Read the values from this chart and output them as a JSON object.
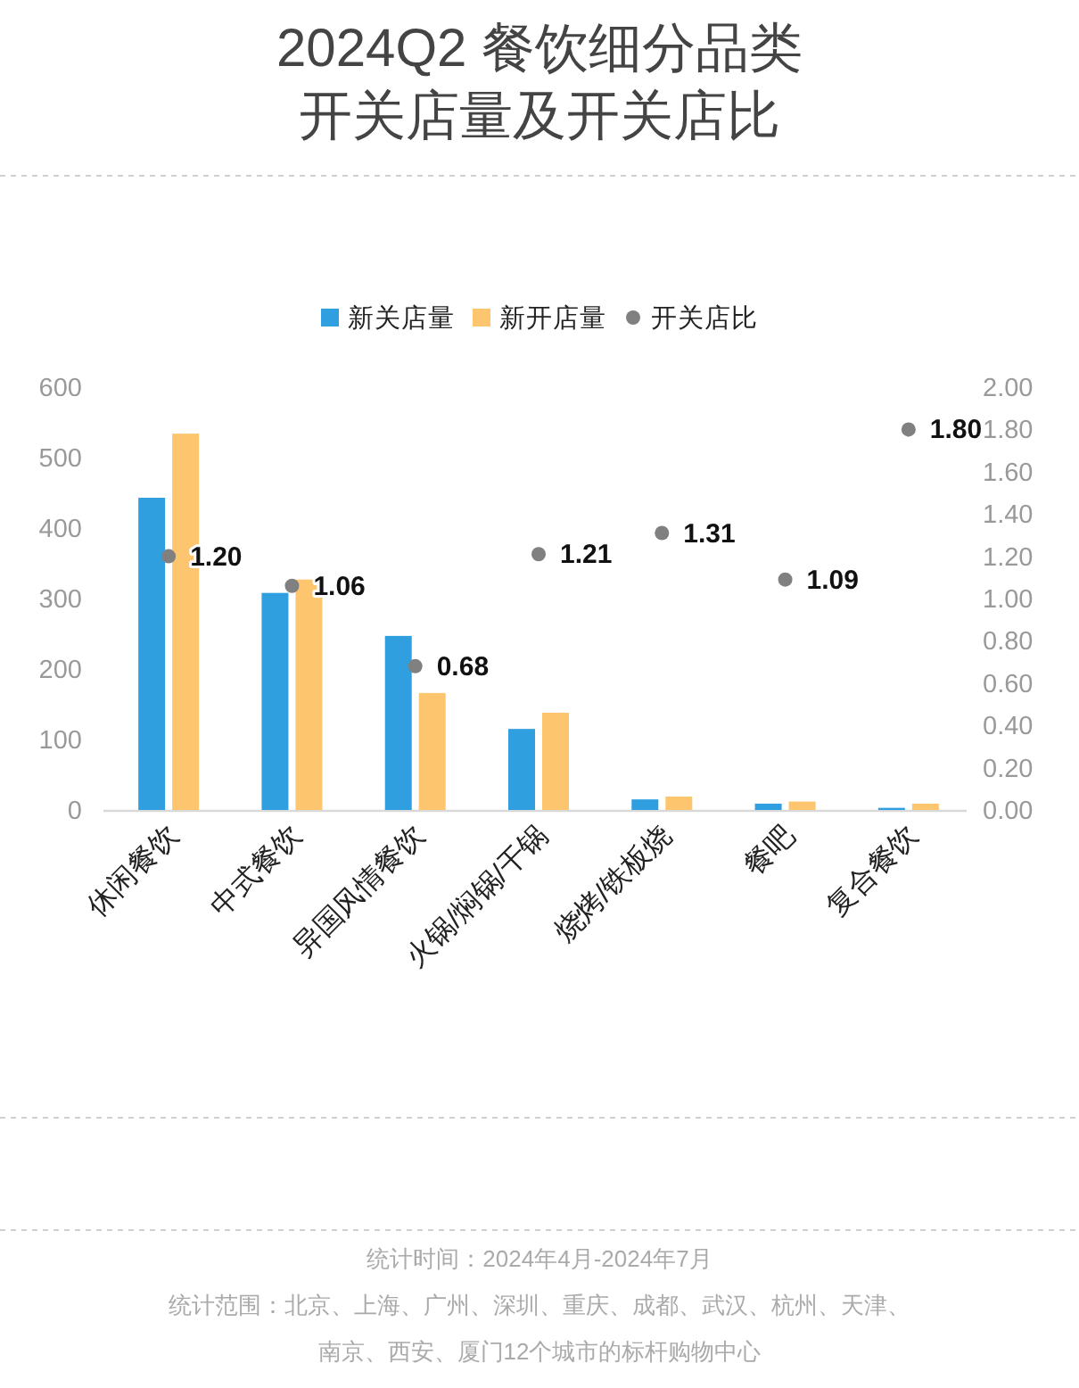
{
  "chart_data": {
    "type": "bar",
    "title": "2024Q2 餐饮细分品类",
    "subtitle": "开关店量及开关店比",
    "categories": [
      "休闲餐饮",
      "中式餐饮",
      "异国风情餐饮",
      "火锅/焖锅/干锅",
      "烧烤/铁板烧",
      "餐吧",
      "复合餐饮"
    ],
    "series": [
      {
        "name": "新关店量",
        "color": "#2f9fe0",
        "values": [
          443,
          308,
          247,
          115,
          15,
          9,
          3
        ]
      },
      {
        "name": "新开店量",
        "color": "#fec56f",
        "values": [
          534,
          327,
          166,
          138,
          19,
          12,
          9
        ]
      },
      {
        "name": "开关店比",
        "type": "scatter",
        "axis": "y2",
        "color": "#808080",
        "marker": "circle",
        "values": [
          1.2,
          1.06,
          0.68,
          1.21,
          1.31,
          1.09,
          1.8
        ],
        "value_labels": [
          "1.20",
          "1.06",
          "0.68",
          "1.21",
          "1.31",
          "1.09",
          "1.80"
        ]
      }
    ],
    "ylim": [
      0,
      600
    ],
    "yticks": [
      0,
      100,
      200,
      300,
      400,
      500,
      600
    ],
    "y2lim": [
      0,
      2
    ],
    "y2ticks": [
      {
        "value": 0,
        "label": "0.00"
      },
      {
        "value": 0.2,
        "label": "0.20"
      },
      {
        "value": 0.4,
        "label": "0.40"
      },
      {
        "value": 0.6,
        "label": "0.60"
      },
      {
        "value": 0.8,
        "label": "0.80"
      },
      {
        "value": 1,
        "label": "1.00"
      },
      {
        "value": 1.2,
        "label": "1.20"
      },
      {
        "value": 1.4,
        "label": "1.40"
      },
      {
        "value": 1.6,
        "label": "1.60"
      },
      {
        "value": 1.8,
        "label": "1.80"
      },
      {
        "value": 2,
        "label": "2.00"
      }
    ],
    "legend": "top",
    "annotations": [
      "统计时间：2024年4月-2024年7月",
      "统计范围：北京、上海、广州、深圳、重庆、成都、武汉、杭州、天津、南京、西安、厦门12个城市的标杆购物中心"
    ]
  }
}
